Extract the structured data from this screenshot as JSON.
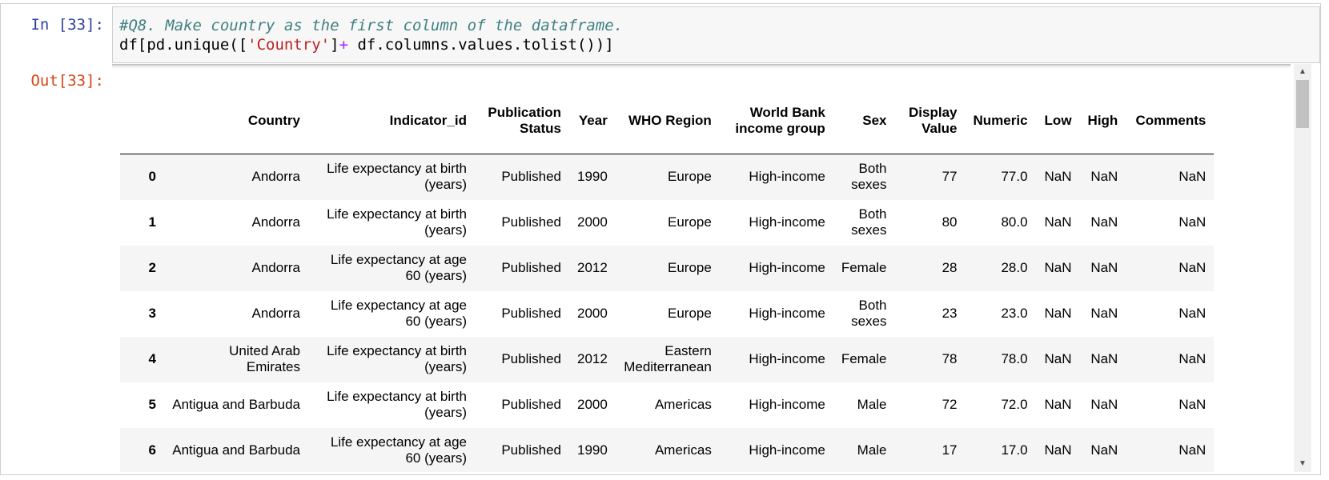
{
  "input_prompt": "In [33]:",
  "output_prompt": "Out[33]:",
  "code": {
    "comment": "#Q8. Make country as the first column of the dataframe.",
    "line2_part1": "df[pd.unique([",
    "line2_string": "'Country'",
    "line2_bracket": "]",
    "line2_op": "+",
    "line2_part2": " df.columns.values.tolist())]"
  },
  "table": {
    "headers": [
      "",
      "Country",
      "Indicator_id",
      "Publication Status",
      "Year",
      "WHO Region",
      "World Bank income group",
      "Sex",
      "Display Value",
      "Numeric",
      "Low",
      "High",
      "Comments"
    ],
    "rows": [
      [
        "0",
        "Andorra",
        "Life expectancy at birth (years)",
        "Published",
        "1990",
        "Europe",
        "High-income",
        "Both sexes",
        "77",
        "77.0",
        "NaN",
        "NaN",
        "NaN"
      ],
      [
        "1",
        "Andorra",
        "Life expectancy at birth (years)",
        "Published",
        "2000",
        "Europe",
        "High-income",
        "Both sexes",
        "80",
        "80.0",
        "NaN",
        "NaN",
        "NaN"
      ],
      [
        "2",
        "Andorra",
        "Life expectancy at age 60 (years)",
        "Published",
        "2012",
        "Europe",
        "High-income",
        "Female",
        "28",
        "28.0",
        "NaN",
        "NaN",
        "NaN"
      ],
      [
        "3",
        "Andorra",
        "Life expectancy at age 60 (years)",
        "Published",
        "2000",
        "Europe",
        "High-income",
        "Both sexes",
        "23",
        "23.0",
        "NaN",
        "NaN",
        "NaN"
      ],
      [
        "4",
        "United Arab Emirates",
        "Life expectancy at birth (years)",
        "Published",
        "2012",
        "Eastern Mediterranean",
        "High-income",
        "Female",
        "78",
        "78.0",
        "NaN",
        "NaN",
        "NaN"
      ],
      [
        "5",
        "Antigua and Barbuda",
        "Life expectancy at birth (years)",
        "Published",
        "2000",
        "Americas",
        "High-income",
        "Male",
        "72",
        "72.0",
        "NaN",
        "NaN",
        "NaN"
      ],
      [
        "6",
        "Antigua and Barbuda",
        "Life expectancy at age 60 (years)",
        "Published",
        "1990",
        "Americas",
        "High-income",
        "Male",
        "17",
        "17.0",
        "NaN",
        "NaN",
        "NaN"
      ]
    ]
  },
  "icons": {
    "scroll_up": "triangle-up-icon",
    "scroll_down": "triangle-down-icon"
  },
  "colors": {
    "input_prompt": "#303f9f",
    "output_prompt": "#d84315",
    "comment": "#408080",
    "string": "#ba2121",
    "operator": "#aa22ff"
  }
}
